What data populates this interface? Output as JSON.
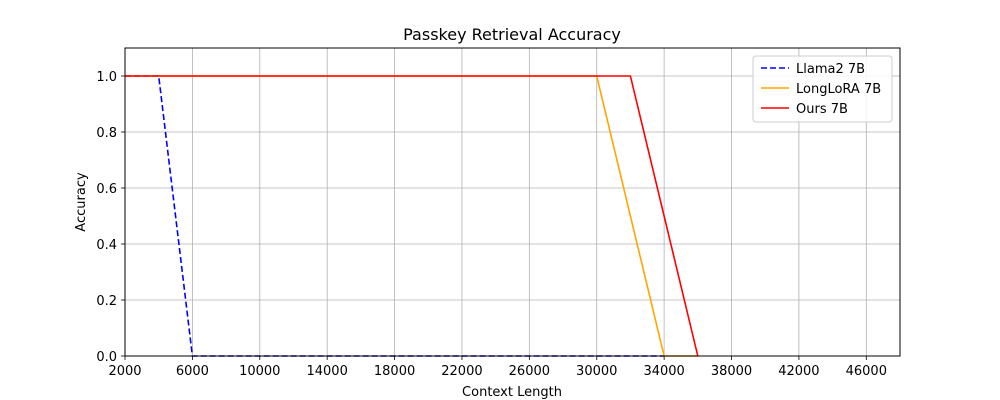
{
  "chart_data": {
    "type": "line",
    "title": "Passkey Retrieval Accuracy",
    "xlabel": "Context Length",
    "ylabel": "Accuracy",
    "xlim": [
      2000,
      48000
    ],
    "ylim": [
      0,
      1.1
    ],
    "xticks": [
      2000,
      6000,
      10000,
      14000,
      18000,
      22000,
      26000,
      30000,
      34000,
      38000,
      42000,
      46000
    ],
    "yticks": [
      "0.0",
      "0.2",
      "0.4",
      "0.6",
      "0.8",
      "1.0"
    ],
    "grid": true,
    "legend_position": "top-right",
    "series": [
      {
        "name": "Llama2 7B",
        "color": "#0000ff",
        "dash": "dashed",
        "x": [
          2000,
          4000,
          6000,
          34000
        ],
        "y": [
          1.0,
          1.0,
          0.0,
          0.0
        ]
      },
      {
        "name": "LongLoRA 7B",
        "color": "#ffa500",
        "dash": "solid",
        "x": [
          2000,
          30000,
          34000,
          36000
        ],
        "y": [
          1.0,
          1.0,
          0.0,
          0.0
        ]
      },
      {
        "name": "Ours 7B",
        "color": "#ff0000",
        "dash": "solid",
        "x": [
          2000,
          32000,
          36000
        ],
        "y": [
          1.0,
          1.0,
          0.0
        ]
      }
    ]
  }
}
